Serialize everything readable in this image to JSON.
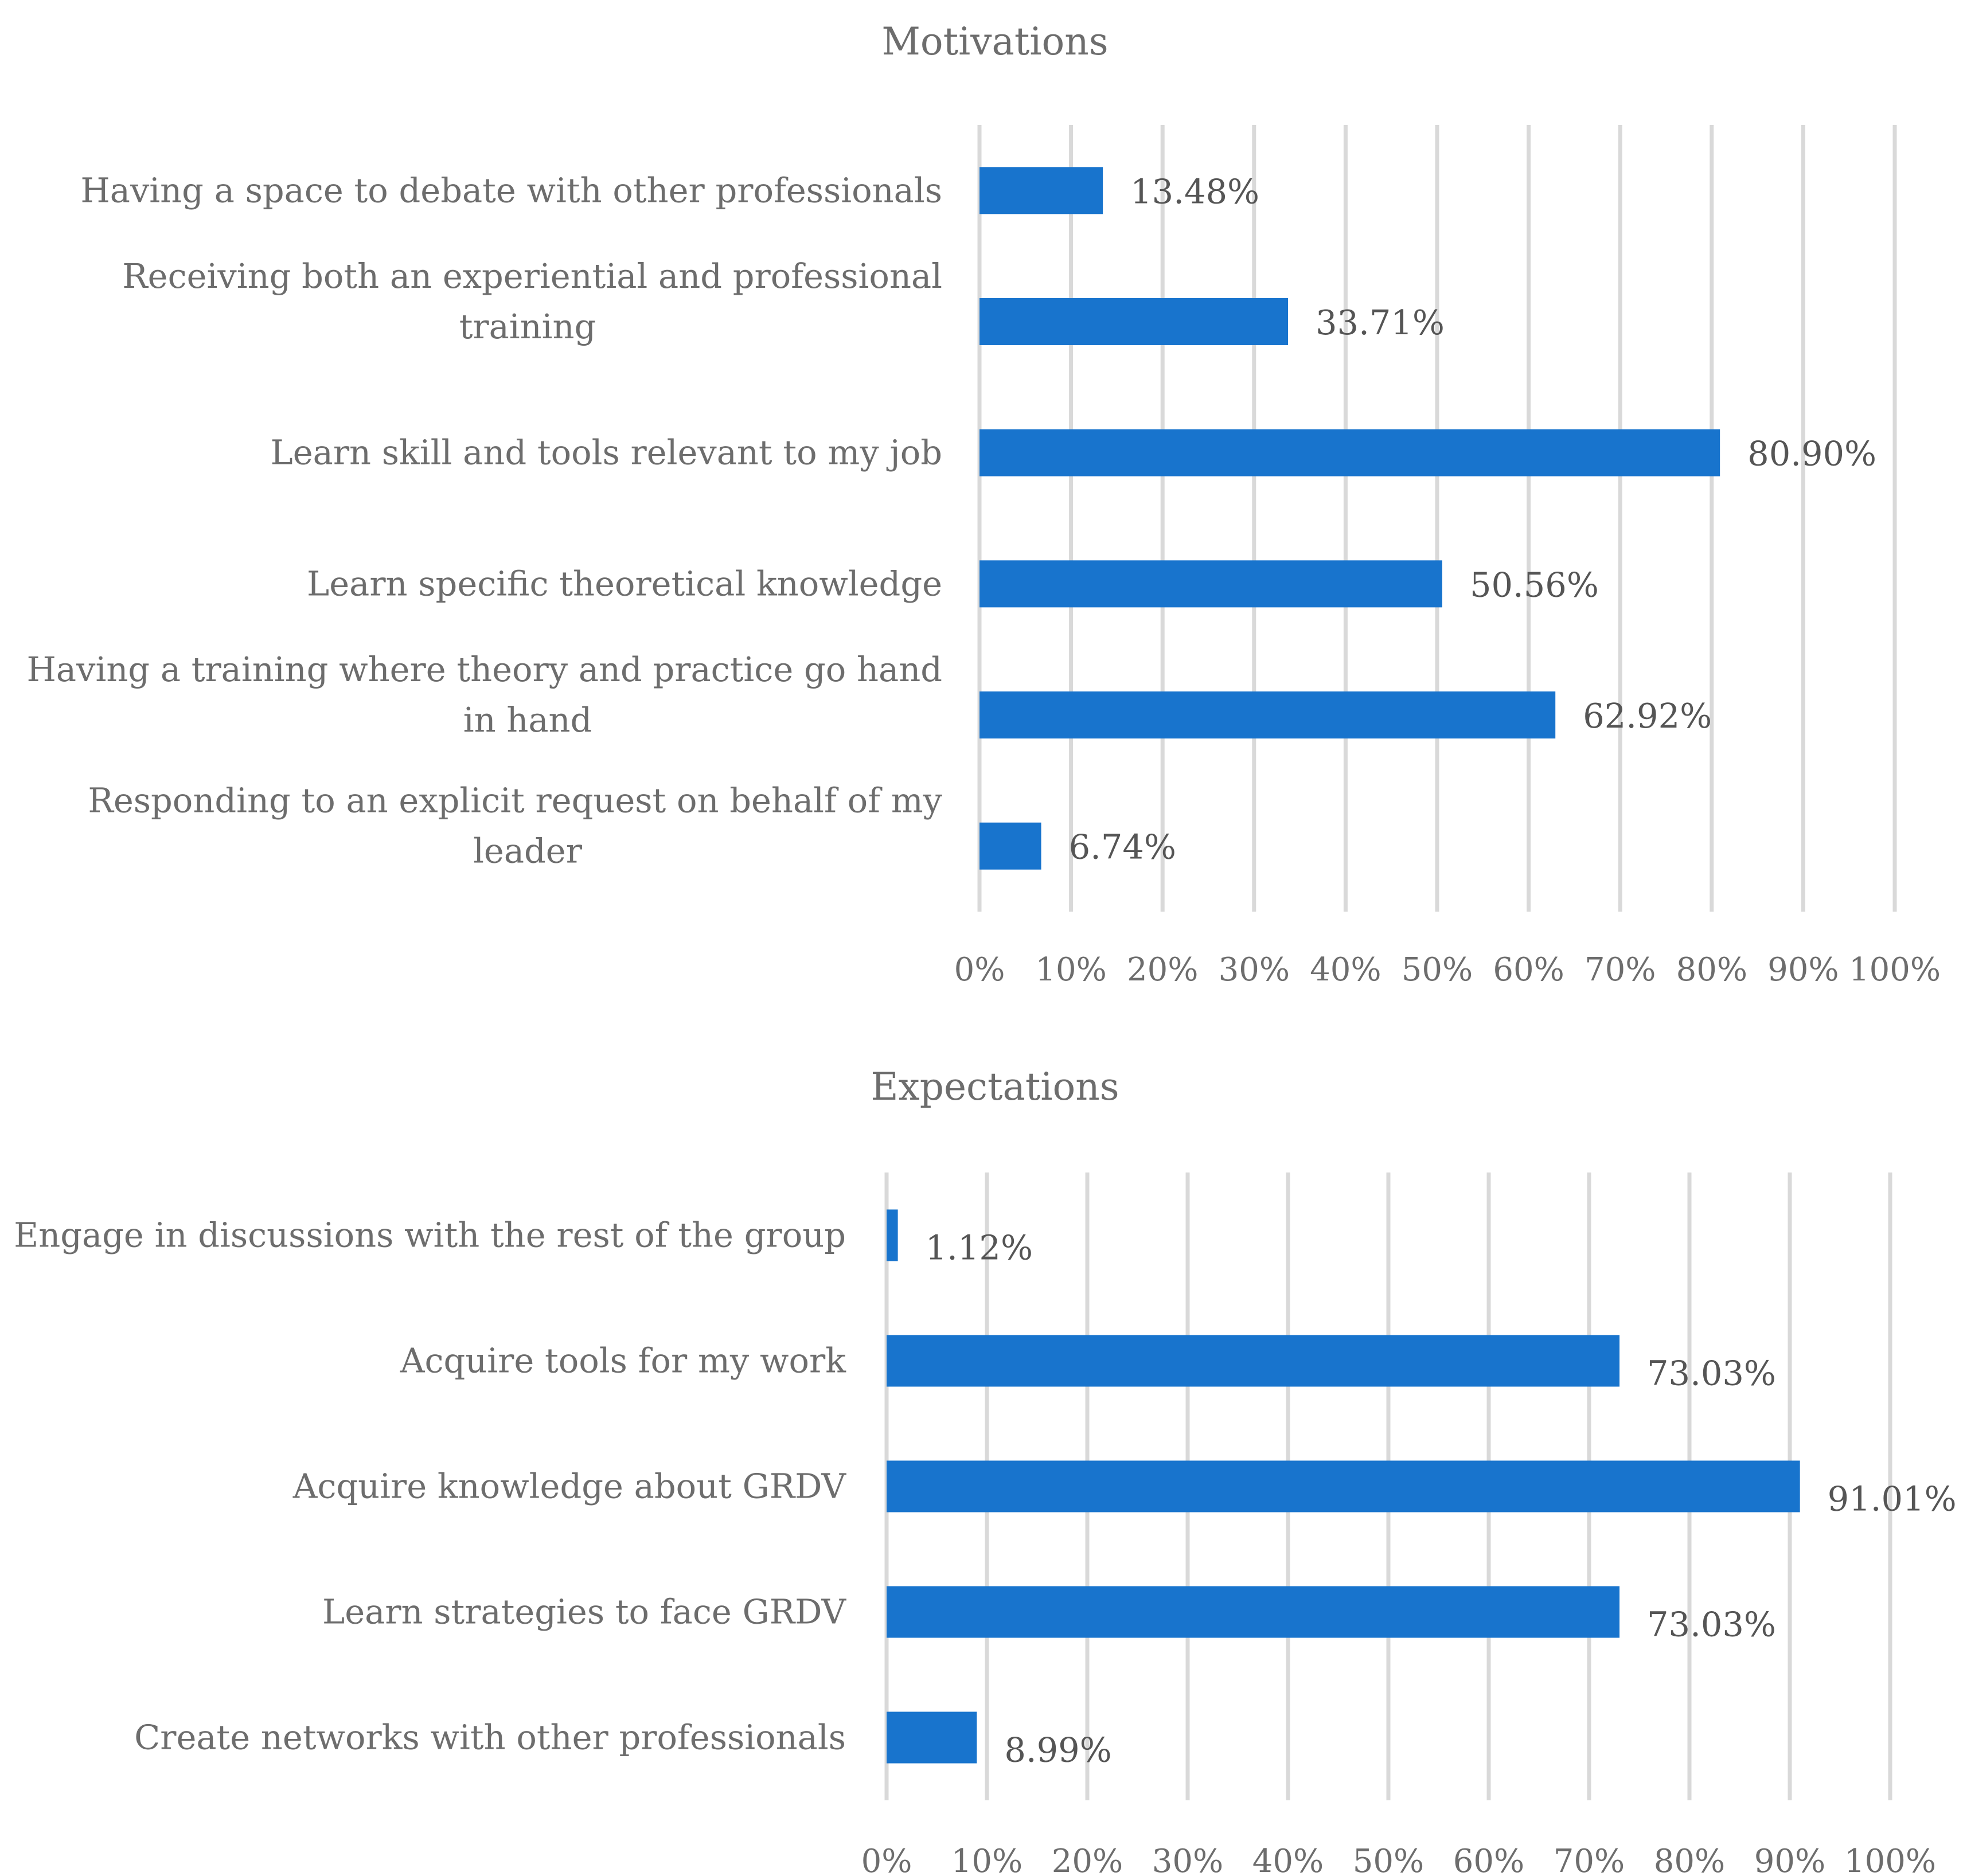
{
  "chart_data": [
    {
      "type": "bar",
      "orientation": "horizontal",
      "title": "Motivations",
      "categories": [
        [
          "Having a space to debate with other professionals"
        ],
        [
          "Receiving both an experiential and professional",
          "training"
        ],
        [
          "Learn skill and tools relevant to my job"
        ],
        [
          "Learn specific theoretical knowledge"
        ],
        [
          "Having a training where theory and practice go hand",
          "in hand"
        ],
        [
          "Responding to an explicit request on behalf of my",
          "leader"
        ]
      ],
      "values": [
        13.48,
        33.71,
        80.9,
        50.56,
        62.92,
        6.74
      ],
      "data_labels": [
        "13.48%",
        "33.71%",
        "80.90%",
        "50.56%",
        "62.92%",
        "6.74%"
      ],
      "xlim": [
        0,
        100
      ],
      "xticks": [
        "0%",
        "10%",
        "20%",
        "30%",
        "40%",
        "50%",
        "60%",
        "70%",
        "80%",
        "90%",
        "100%"
      ],
      "grid": true,
      "bar_color": "#1874CD"
    },
    {
      "type": "bar",
      "orientation": "horizontal",
      "title": "Expectations",
      "categories": [
        [
          "Engage in discussions with the rest of the group"
        ],
        [
          "Acquire tools for my work"
        ],
        [
          "Acquire knowledge about GRDV"
        ],
        [
          "Learn strategies to face GRDV"
        ],
        [
          "Create networks with other professionals"
        ]
      ],
      "values": [
        1.12,
        73.03,
        91.01,
        73.03,
        8.99
      ],
      "data_labels": [
        "1.12%",
        "73.03%",
        "91.01%",
        "73.03%",
        "8.99%"
      ],
      "xlim": [
        0,
        100
      ],
      "xticks": [
        "0%",
        "10%",
        "20%",
        "30%",
        "40%",
        "50%",
        "60%",
        "70%",
        "80%",
        "90%",
        "100%"
      ],
      "grid": true,
      "bar_color": "#1874CD"
    }
  ]
}
